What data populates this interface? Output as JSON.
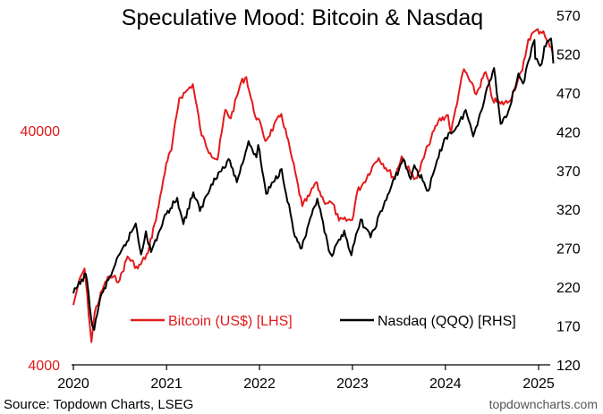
{
  "chart_data": {
    "type": "line",
    "title": "Speculative Mood: Bitcoin & Nasdaq",
    "x_ticks": [
      "2020",
      "2021",
      "2022",
      "2023",
      "2024",
      "2025"
    ],
    "left_axis": {
      "scale": "log",
      "ticks": [
        {
          "label": "40000",
          "value": 40000
        },
        {
          "label": "4000",
          "value": 4000
        }
      ],
      "ylim": [
        4000,
        124000
      ],
      "color": "#e31a1c"
    },
    "right_axis": {
      "scale": "linear",
      "ticks": [
        "570",
        "520",
        "470",
        "420",
        "370",
        "320",
        "270",
        "220",
        "170",
        "120"
      ],
      "ylim": [
        120,
        570
      ],
      "color": "#000000"
    },
    "series": [
      {
        "name": "Bitcoin (US$) [LHS]",
        "axis": "left",
        "color": "#e31a1c",
        "points": [
          [
            "2020-01-01",
            7200
          ],
          [
            "2020-01-20",
            8800
          ],
          [
            "2020-02-14",
            10300
          ],
          [
            "2020-03-12",
            5000
          ],
          [
            "2020-03-25",
            6700
          ],
          [
            "2020-04-30",
            8700
          ],
          [
            "2020-05-20",
            9500
          ],
          [
            "2020-07-01",
            9200
          ],
          [
            "2020-08-01",
            11600
          ],
          [
            "2020-09-10",
            10300
          ],
          [
            "2020-10-20",
            12000
          ],
          [
            "2020-11-15",
            16000
          ],
          [
            "2020-12-01",
            19000
          ],
          [
            "2020-12-31",
            29000
          ],
          [
            "2021-01-20",
            33000
          ],
          [
            "2021-02-20",
            55000
          ],
          [
            "2021-03-15",
            58000
          ],
          [
            "2021-04-14",
            63000
          ],
          [
            "2021-05-19",
            38000
          ],
          [
            "2021-06-22",
            32000
          ],
          [
            "2021-07-20",
            30000
          ],
          [
            "2021-08-20",
            49000
          ],
          [
            "2021-09-10",
            45000
          ],
          [
            "2021-10-20",
            64000
          ],
          [
            "2021-11-10",
            67500
          ],
          [
            "2021-12-10",
            48000
          ],
          [
            "2022-01-10",
            41000
          ],
          [
            "2022-01-24",
            36000
          ],
          [
            "2022-03-28",
            47000
          ],
          [
            "2022-05-10",
            30000
          ],
          [
            "2022-06-18",
            19000
          ],
          [
            "2022-07-15",
            21000
          ],
          [
            "2022-08-10",
            24000
          ],
          [
            "2022-09-10",
            20000
          ],
          [
            "2022-10-15",
            19500
          ],
          [
            "2022-11-09",
            16500
          ],
          [
            "2022-12-31",
            16600
          ],
          [
            "2023-01-20",
            22000
          ],
          [
            "2023-02-15",
            24000
          ],
          [
            "2023-03-20",
            28000
          ],
          [
            "2023-04-14",
            30500
          ],
          [
            "2023-06-15",
            25000
          ],
          [
            "2023-07-13",
            31000
          ],
          [
            "2023-08-20",
            26000
          ],
          [
            "2023-09-11",
            25000
          ],
          [
            "2023-10-25",
            34500
          ],
          [
            "2023-12-05",
            44000
          ],
          [
            "2024-01-11",
            46500
          ],
          [
            "2024-01-23",
            39000
          ],
          [
            "2024-02-28",
            62000
          ],
          [
            "2024-03-14",
            73000
          ],
          [
            "2024-05-01",
            57000
          ],
          [
            "2024-06-07",
            71000
          ],
          [
            "2024-07-05",
            54000
          ],
          [
            "2024-08-05",
            52000
          ],
          [
            "2024-09-06",
            53000
          ],
          [
            "2024-10-29",
            72000
          ],
          [
            "2024-11-22",
            98000
          ],
          [
            "2024-12-17",
            106000
          ],
          [
            "2025-01-20",
            106000
          ],
          [
            "2025-02-03",
            97000
          ],
          [
            "2025-02-25",
            86000
          ]
        ]
      },
      {
        "name": "Nasdaq (QQQ) [RHS]",
        "axis": "right",
        "color": "#000000",
        "points": [
          [
            "2020-01-01",
            212
          ],
          [
            "2020-02-19",
            237
          ],
          [
            "2020-03-16",
            170
          ],
          [
            "2020-03-23",
            165
          ],
          [
            "2020-04-15",
            205
          ],
          [
            "2020-06-08",
            245
          ],
          [
            "2020-09-02",
            302
          ],
          [
            "2020-09-23",
            262
          ],
          [
            "2020-10-12",
            292
          ],
          [
            "2020-11-01",
            265
          ],
          [
            "2020-12-31",
            314
          ],
          [
            "2021-02-12",
            335
          ],
          [
            "2021-03-08",
            301
          ],
          [
            "2021-04-16",
            342
          ],
          [
            "2021-05-12",
            318
          ],
          [
            "2021-07-07",
            360
          ],
          [
            "2021-09-07",
            383
          ],
          [
            "2021-10-04",
            355
          ],
          [
            "2021-11-19",
            408
          ],
          [
            "2021-12-20",
            387
          ],
          [
            "2021-12-27",
            403
          ],
          [
            "2022-01-27",
            340
          ],
          [
            "2022-03-29",
            372
          ],
          [
            "2022-05-20",
            285
          ],
          [
            "2022-06-16",
            270
          ],
          [
            "2022-08-16",
            334
          ],
          [
            "2022-09-30",
            267
          ],
          [
            "2022-10-13",
            260
          ],
          [
            "2022-11-30",
            293
          ],
          [
            "2022-12-28",
            261
          ],
          [
            "2023-02-02",
            307
          ],
          [
            "2023-03-13",
            284
          ],
          [
            "2023-05-31",
            347
          ],
          [
            "2023-07-19",
            385
          ],
          [
            "2023-08-18",
            359
          ],
          [
            "2023-09-01",
            377
          ],
          [
            "2023-10-26",
            344
          ],
          [
            "2023-12-28",
            411
          ],
          [
            "2024-02-20",
            428
          ],
          [
            "2024-03-21",
            448
          ],
          [
            "2024-04-19",
            414
          ],
          [
            "2024-06-18",
            480
          ],
          [
            "2024-07-10",
            502
          ],
          [
            "2024-08-05",
            430
          ],
          [
            "2024-09-06",
            448
          ],
          [
            "2024-10-14",
            495
          ],
          [
            "2024-11-01",
            482
          ],
          [
            "2024-12-16",
            538
          ],
          [
            "2024-12-19",
            514
          ],
          [
            "2025-01-13",
            507
          ],
          [
            "2025-01-24",
            530
          ],
          [
            "2025-02-19",
            540
          ],
          [
            "2025-02-28",
            508
          ]
        ]
      }
    ],
    "legend": {
      "placement": "lower-center"
    }
  },
  "footer": {
    "source": "Source: Topdown Charts, LSEG",
    "watermark": "topdowncharts.com"
  }
}
